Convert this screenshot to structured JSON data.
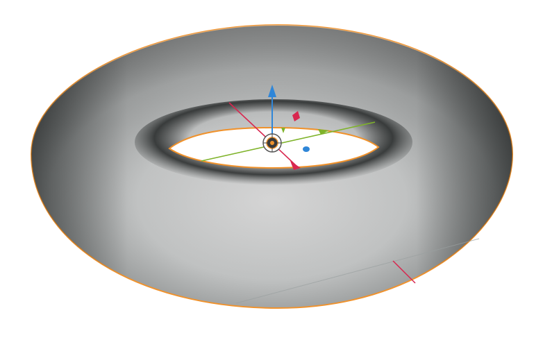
{
  "viewport": {
    "background": "#ffffff",
    "selected_object": "torus",
    "selection_outline_color": "#f0922c",
    "mesh_shade_light": "#d3d3d3",
    "mesh_shade_dark": "#1a1c1c"
  },
  "gizmo": {
    "axes": [
      {
        "axis": "x",
        "color": "#d8274f"
      },
      {
        "axis": "y",
        "color": "#7fb32a"
      },
      {
        "axis": "z",
        "color": "#2f86d8"
      }
    ],
    "center_icon": "transform-origin-icon"
  }
}
